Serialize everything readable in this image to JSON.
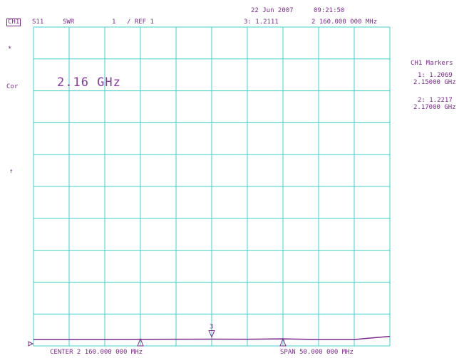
{
  "header": {
    "date": "22 Jun 2007",
    "time": "09:21:50",
    "channel": "CH1",
    "param": "S11",
    "format": "SWR",
    "scale": "1",
    "ref": "/ REF 1",
    "marker_readout": "3: 1.2111",
    "marker_freq": "2 160.000 000 MHz"
  },
  "left_annotations": {
    "asterisk": "*",
    "cor": "Cor",
    "arrow": "↑"
  },
  "overlay_text": "2.16 GHz",
  "markers_panel": {
    "title": "CH1 Markers",
    "m1_value": "1: 1.2069",
    "m1_freq": "2.15000 GHz",
    "m2_value": "2: 1.2217",
    "m2_freq": "2.17000 GHz"
  },
  "footer": {
    "center": "CENTER 2 160.000 000 MHz",
    "span": "SPAN 50.000 000 MHz"
  },
  "trace_marker_label": "3",
  "colors": {
    "grid": "#40d0d0",
    "text": "#7a2a8a",
    "trace": "#7a2a8a"
  },
  "chart_data": {
    "type": "line",
    "x_center_mhz": 2160,
    "x_span_mhz": 50,
    "ylim": [
      1,
      11
    ],
    "series": [
      {
        "x": [
          2135,
          2145,
          2150,
          2155,
          2160,
          2165,
          2170,
          2175,
          2180,
          2185
        ],
        "values": [
          1.2,
          1.2,
          1.2069,
          1.21,
          1.2111,
          1.21,
          1.2217,
          1.2,
          1.2,
          1.3
        ]
      }
    ],
    "markers": [
      {
        "label": "1",
        "x": 2150
      },
      {
        "label": "2",
        "x": 2170
      },
      {
        "label": "3",
        "x": 2160
      }
    ]
  }
}
